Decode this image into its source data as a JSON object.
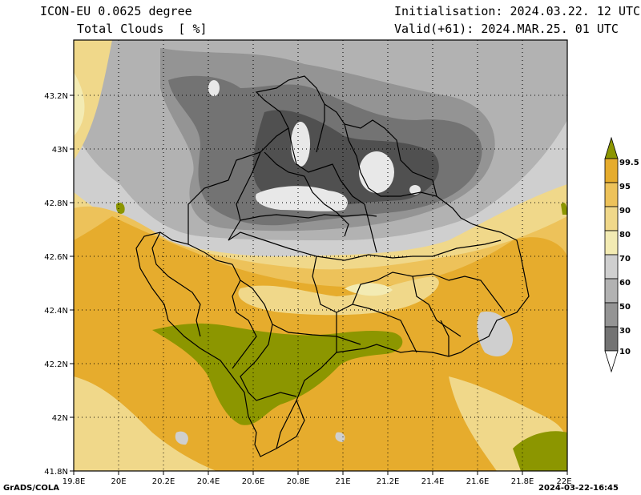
{
  "header": {
    "model": "ICON-EU 0.0625 degree",
    "field": "Total Clouds  [ %]",
    "init": "Initialisation: 2024.03.22. 12 UTC",
    "valid": "Valid(+61): 2024.MAR.25. 01 UTC"
  },
  "footer": {
    "left": "GrADS/COLA",
    "right": "2024-03-22-16:45"
  },
  "map": {
    "lon_labels": [
      "19.8E",
      "20E",
      "20.2E",
      "20.4E",
      "20.6E",
      "20.8E",
      "21E",
      "21.2E",
      "21.4E",
      "21.6E",
      "21.8E",
      "22E"
    ],
    "lat_labels": [
      "41.8N",
      "42N",
      "42.2N",
      "42.4N",
      "42.6N",
      "42.8N",
      "43N",
      "43.2N"
    ]
  },
  "colorbar": {
    "levels": [
      "99.5",
      "95",
      "90",
      "80",
      "70",
      "60",
      "50",
      "30",
      "10"
    ],
    "colors": [
      "#8c9600",
      "#e6ac2d",
      "#edc25a",
      "#f0d88a",
      "#f3ebb3",
      "#cfcfcf",
      "#b2b2b2",
      "#949494",
      "#737373",
      "#505050",
      "#ffffff"
    ]
  }
}
